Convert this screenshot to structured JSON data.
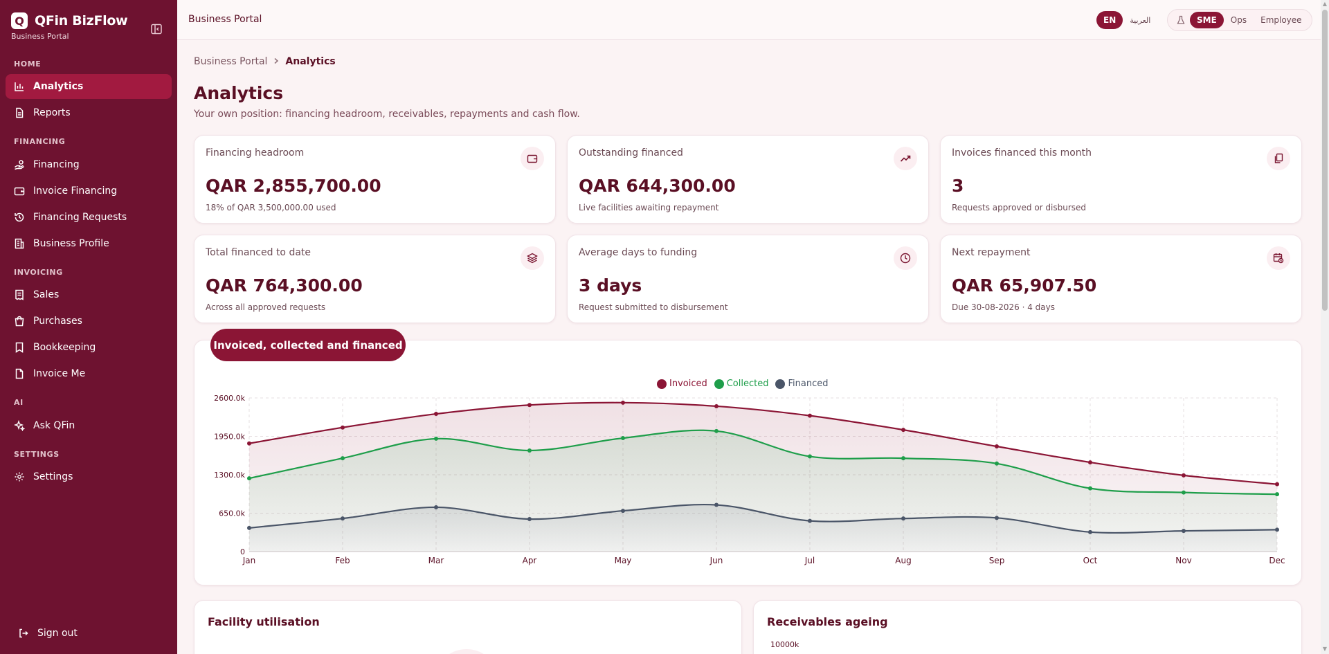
{
  "brand": {
    "name": "QFin BizFlow",
    "logo_letter": "Q",
    "subtitle": "Business Portal"
  },
  "sidebar": {
    "sections": [
      {
        "label": "HOME"
      },
      {
        "label": "FINANCING"
      },
      {
        "label": "INVOICING"
      },
      {
        "label": "AI"
      },
      {
        "label": "SETTINGS"
      }
    ],
    "items": [
      {
        "label": "Analytics",
        "icon": "bar-chart-icon",
        "active": true
      },
      {
        "label": "Reports",
        "icon": "document-icon"
      },
      {
        "label": "Financing",
        "icon": "hand-coins-icon"
      },
      {
        "label": "Invoice Financing",
        "icon": "wallet-icon"
      },
      {
        "label": "Financing Requests",
        "icon": "history-icon"
      },
      {
        "label": "Business Profile",
        "icon": "building-icon"
      },
      {
        "label": "Sales",
        "icon": "receipt-icon"
      },
      {
        "label": "Purchases",
        "icon": "shopping-bag-icon"
      },
      {
        "label": "Bookkeeping",
        "icon": "bookmark-icon"
      },
      {
        "label": "Invoice Me",
        "icon": "file-icon"
      },
      {
        "label": "Ask QFin",
        "icon": "sparkles-icon"
      },
      {
        "label": "Settings",
        "icon": "gear-icon"
      }
    ],
    "signout_label": "Sign out"
  },
  "topbar": {
    "title": "Business Portal",
    "lang_en": "EN",
    "lang_ar": "العربية",
    "role_sme": "SME",
    "role_ops": "Ops",
    "role_employee": "Employee"
  },
  "breadcrumb": {
    "root": "Business Portal",
    "current": "Analytics"
  },
  "page": {
    "title": "Analytics",
    "subtitle": "Your own position: financing headroom, receivables, repayments and cash flow."
  },
  "kpis": [
    {
      "label": "Financing headroom",
      "value": "QAR 2,855,700.00",
      "note": "18% of QAR 3,500,000.00 used",
      "icon": "wallet-icon"
    },
    {
      "label": "Outstanding financed",
      "value": "QAR 644,300.00",
      "note": "Live facilities awaiting repayment",
      "icon": "trending-up-icon"
    },
    {
      "label": "Invoices financed this month",
      "value": "3",
      "note": "Requests approved or disbursed",
      "icon": "documents-icon"
    },
    {
      "label": "Total financed to date",
      "value": "QAR 764,300.00",
      "note": "Across all approved requests",
      "icon": "layers-icon"
    },
    {
      "label": "Average days to funding",
      "value": "3 days",
      "note": "Request submitted to disbursement",
      "icon": "clock-icon"
    },
    {
      "label": "Next repayment",
      "value": "QAR 65,907.50",
      "note": "Due 30-08-2026 · 4 days",
      "icon": "calendar-clock-icon"
    }
  ],
  "main_chart": {
    "tab_label": "Invoiced, collected and financed"
  },
  "chart_data": {
    "type": "area",
    "categories": [
      "Jan",
      "Feb",
      "Mar",
      "Apr",
      "May",
      "Jun",
      "Jul",
      "Aug",
      "Sep",
      "Oct",
      "Nov",
      "Dec"
    ],
    "series": [
      {
        "name": "Invoiced",
        "color": "#8b1535",
        "values": [
          1830,
          2100,
          2330,
          2480,
          2520,
          2460,
          2300,
          2060,
          1780,
          1510,
          1290,
          1140
        ]
      },
      {
        "name": "Collected",
        "color": "#1e9e4a",
        "values": [
          1240,
          1580,
          1910,
          1710,
          1920,
          2040,
          1610,
          1580,
          1490,
          1070,
          1000,
          970
        ]
      },
      {
        "name": "Financed",
        "color": "#4a5568",
        "values": [
          400,
          560,
          750,
          550,
          690,
          790,
          520,
          560,
          570,
          330,
          350,
          370
        ]
      }
    ],
    "y_ticks": [
      "0",
      "650.0k",
      "1300.0k",
      "1950.0k",
      "2600.0k"
    ],
    "ylim": [
      0,
      2600
    ],
    "legend_position": "top-center",
    "grid": true
  },
  "sections": {
    "facility": "Facility utilisation",
    "ageing": "Receivables ageing",
    "ageing_tick": "10000k"
  }
}
